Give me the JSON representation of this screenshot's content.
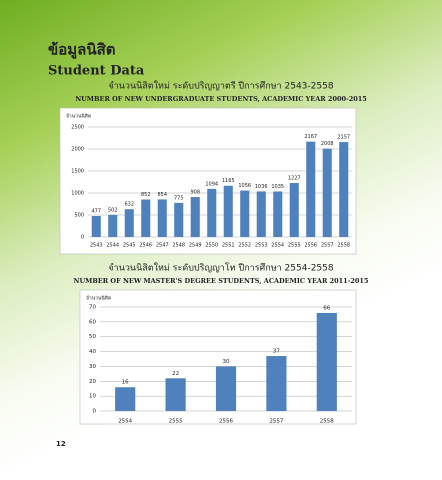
{
  "header": {
    "title_th": "ข้อมูลนิสิต",
    "title_en": "Student Data"
  },
  "chart_data": [
    {
      "type": "bar",
      "title": "จำนวนนิสิตใหม่ ระดับปริญญาตรี  ปีการศึกษา 2543-2558",
      "subtitle": "NUMBER OF NEW UNDERGRADUATE STUDENTS, ACADEMIC YEAR 2000-2015",
      "ylabel": "จำนวนนิสิต",
      "categories": [
        "2543",
        "2544",
        "2545",
        "2546",
        "2547",
        "2548",
        "2549",
        "2550",
        "2551",
        "2552",
        "2553",
        "2554",
        "2555",
        "2556",
        "2557",
        "2558"
      ],
      "values": [
        477,
        502,
        632,
        852,
        854,
        775,
        908,
        1094,
        1165,
        1056,
        1036,
        1035,
        1227,
        2167,
        2008,
        2157
      ],
      "color": "#4f81bd",
      "ylim": [
        0,
        2500
      ],
      "yticks": [
        0,
        500,
        1000,
        1500,
        2000,
        2500
      ],
      "grid": true
    },
    {
      "type": "bar",
      "title": "จำนวนนิสิตใหม่ ระดับปริญญาโท  ปีการศึกษา 2554-2558",
      "subtitle": "NUMBER OF NEW MASTER'S DEGREE STUDENTS, ACADEMIC YEAR 2011-2015",
      "ylabel": "จำนวนนิสิต",
      "categories": [
        "2554",
        "2555",
        "2556",
        "2557",
        "2558"
      ],
      "values": [
        16,
        22,
        30,
        37,
        66
      ],
      "color": "#4f81bd",
      "ylim": [
        0,
        70
      ],
      "yticks": [
        0,
        10,
        20,
        30,
        40,
        50,
        60,
        70
      ],
      "grid": true
    }
  ],
  "footer": {
    "page": "12"
  }
}
